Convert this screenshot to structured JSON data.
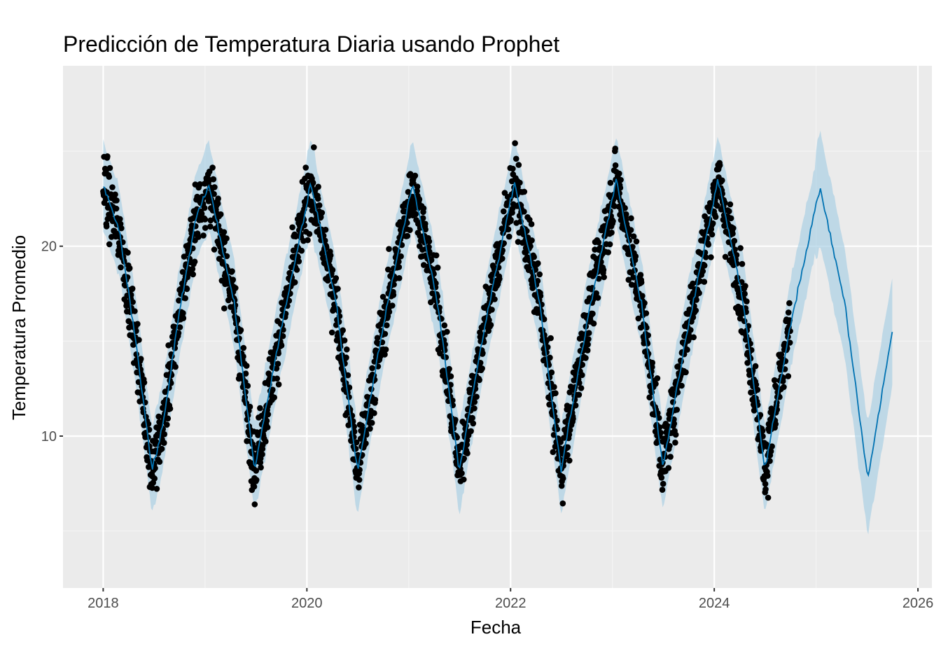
{
  "chart_data": {
    "type": "scatter",
    "title": "Predicción de Temperatura Diaria usando Prophet",
    "xlabel": "Fecha",
    "ylabel": "Temperatura Promedio",
    "x_axis": "date",
    "xlim": [
      "2017-08-10",
      "2026-02-20"
    ],
    "ylim": [
      2.0,
      29.5
    ],
    "x_ticks": [
      "2018",
      "2020",
      "2022",
      "2024",
      "2026"
    ],
    "y_ticks": [
      10,
      20
    ],
    "grid": true,
    "legend": "none",
    "colors": {
      "panel": "#ebebeb",
      "grid_major": "#ffffff",
      "grid_minor": "#f5f5f5",
      "points": "#000000",
      "forecast_line": "#0072b2",
      "interval_fill": "#a6cee3"
    },
    "series": [
      {
        "type": "points",
        "date_range": [
          "2018-01-01",
          "2024-09-30"
        ],
        "sampled_values": [
          [
            "2018-01-01",
            23.0
          ],
          [
            "2018-04-01",
            17.0
          ],
          [
            "2018-07-01",
            8.0
          ],
          [
            "2018-10-01",
            15.5
          ],
          [
            "2019-01-01",
            23.0
          ],
          [
            "2019-04-01",
            17.0
          ],
          [
            "2019-07-01",
            8.0
          ],
          [
            "2019-10-01",
            15.5
          ],
          [
            "2020-01-01",
            23.0
          ],
          [
            "2020-04-01",
            17.0
          ],
          [
            "2020-07-01",
            8.0
          ],
          [
            "2020-10-01",
            15.5
          ],
          [
            "2021-01-01",
            23.0
          ],
          [
            "2021-04-01",
            17.0
          ],
          [
            "2021-07-01",
            8.0
          ],
          [
            "2021-10-01",
            15.5
          ],
          [
            "2022-01-01",
            23.0
          ],
          [
            "2022-04-01",
            17.0
          ],
          [
            "2022-07-01",
            8.0
          ],
          [
            "2022-10-01",
            15.5
          ],
          [
            "2023-01-01",
            23.0
          ],
          [
            "2023-04-01",
            17.0
          ],
          [
            "2023-07-01",
            8.0
          ],
          [
            "2023-10-01",
            15.5
          ],
          [
            "2024-01-01",
            23.0
          ],
          [
            "2024-04-01",
            17.0
          ],
          [
            "2024-07-01",
            8.0
          ],
          [
            "2024-09-30",
            15.5
          ]
        ]
      },
      {
        "type": "forecast",
        "date_range": [
          "2018-01-01",
          "2025-10-01"
        ],
        "values": [
          [
            "2018-01-01",
            23.2
          ],
          [
            "2018-03-01",
            20.7
          ],
          [
            "2018-05-01",
            14.7
          ],
          [
            "2018-06-25",
            8.2
          ],
          [
            "2018-08-01",
            10.4
          ],
          [
            "2018-10-01",
            16.5
          ],
          [
            "2018-12-01",
            21.6
          ],
          [
            "2019-01-15",
            23.2
          ],
          [
            "2019-04-15",
            17.0
          ],
          [
            "2019-06-28",
            8.3
          ],
          [
            "2019-10-01",
            15.7
          ],
          [
            "2020-01-15",
            23.3
          ],
          [
            "2020-04-15",
            17.0
          ],
          [
            "2020-07-01",
            8.1
          ],
          [
            "2020-10-01",
            15.8
          ],
          [
            "2021-01-15",
            23.3
          ],
          [
            "2021-04-15",
            17.0
          ],
          [
            "2021-07-01",
            8.2
          ],
          [
            "2021-10-01",
            15.8
          ],
          [
            "2022-01-15",
            23.4
          ],
          [
            "2022-04-15",
            17.0
          ],
          [
            "2022-07-01",
            8.2
          ],
          [
            "2022-10-01",
            15.9
          ],
          [
            "2023-01-15",
            23.5
          ],
          [
            "2023-04-15",
            17.0
          ],
          [
            "2023-07-01",
            8.4
          ],
          [
            "2023-10-01",
            15.9
          ],
          [
            "2024-01-15",
            23.5
          ],
          [
            "2024-04-15",
            17.0
          ],
          [
            "2024-07-01",
            8.2
          ],
          [
            "2024-10-01",
            15.9
          ],
          [
            "2025-01-15",
            23.1
          ],
          [
            "2025-04-15",
            16.9
          ],
          [
            "2025-07-05",
            7.7
          ],
          [
            "2025-10-01",
            15.5
          ]
        ],
        "interval_halfwidth": 2.2,
        "interval_halfwidth_2025": 2.8
      }
    ]
  }
}
